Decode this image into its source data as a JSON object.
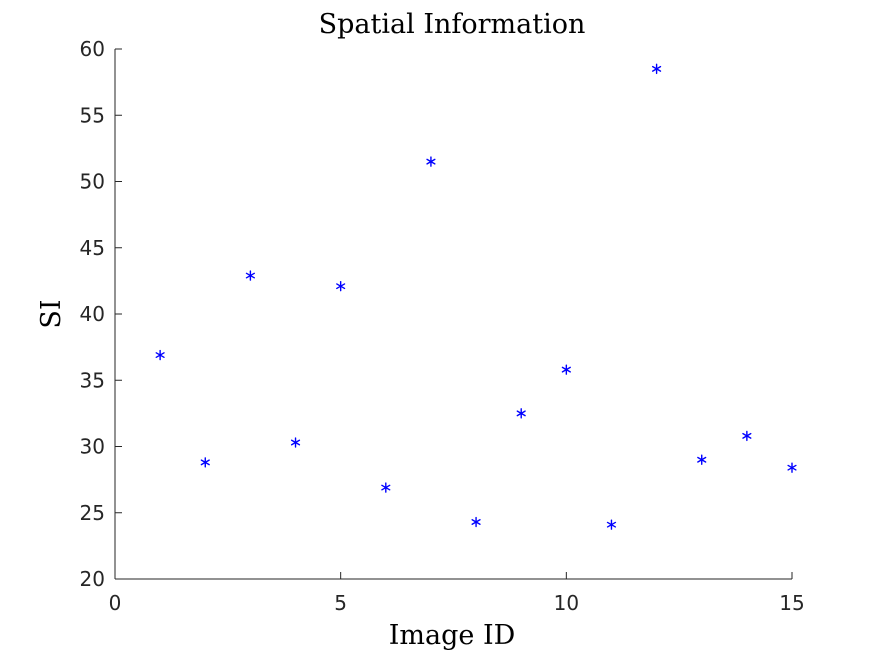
{
  "chart_data": {
    "type": "scatter",
    "title": "Spatial Information",
    "xlabel": "Image ID",
    "ylabel": "SI",
    "xlim": [
      0,
      15
    ],
    "ylim": [
      20,
      60
    ],
    "x_ticks": [
      0,
      5,
      10,
      15
    ],
    "y_ticks": [
      20,
      25,
      30,
      35,
      40,
      45,
      50,
      55,
      60
    ],
    "grid": false,
    "legend": "none",
    "marker": "asterisk",
    "series": [
      {
        "color": "#0000ff",
        "points": [
          {
            "x": 1,
            "y": 36.9
          },
          {
            "x": 2,
            "y": 28.8
          },
          {
            "x": 3,
            "y": 42.9
          },
          {
            "x": 4,
            "y": 30.3
          },
          {
            "x": 5,
            "y": 42.1
          },
          {
            "x": 6,
            "y": 26.9
          },
          {
            "x": 7,
            "y": 51.5
          },
          {
            "x": 8,
            "y": 24.3
          },
          {
            "x": 9,
            "y": 32.5
          },
          {
            "x": 10,
            "y": 35.8
          },
          {
            "x": 11,
            "y": 24.1
          },
          {
            "x": 12,
            "y": 58.5
          },
          {
            "x": 13,
            "y": 29.0
          },
          {
            "x": 14,
            "y": 30.8
          },
          {
            "x": 15,
            "y": 28.4
          }
        ]
      }
    ]
  }
}
